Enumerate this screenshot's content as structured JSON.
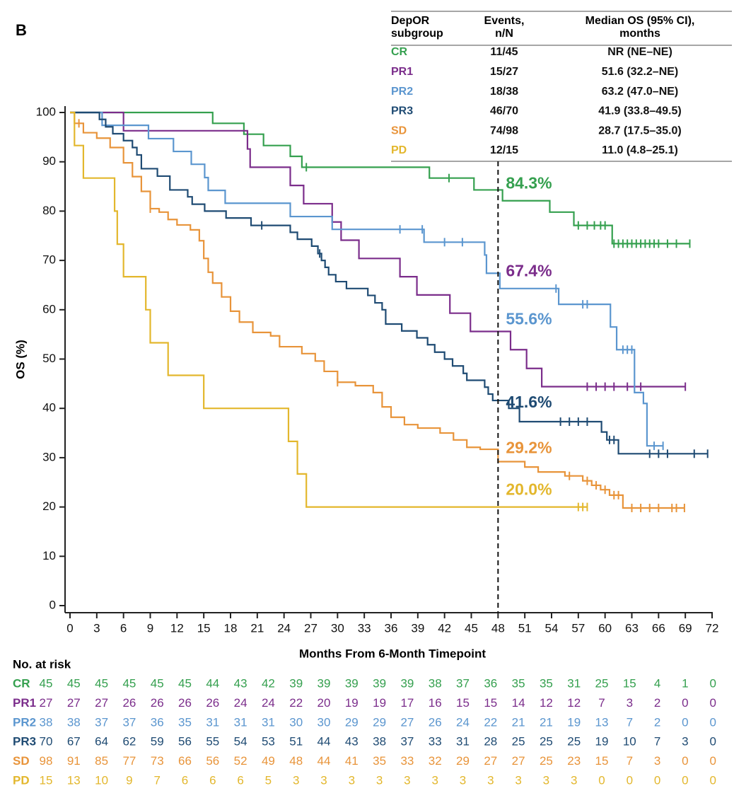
{
  "chart_data": {
    "type": "km",
    "panel_label": "B",
    "x_label": "Months From 6-Month Timepoint",
    "y_label": "OS (%)",
    "xlim": [
      0,
      72
    ],
    "ylim": [
      0,
      100
    ],
    "xticks": [
      0,
      3,
      6,
      9,
      12,
      15,
      18,
      21,
      24,
      27,
      30,
      33,
      36,
      39,
      42,
      45,
      48,
      51,
      54,
      57,
      60,
      63,
      66,
      69,
      72
    ],
    "yticks": [
      0,
      10,
      20,
      30,
      40,
      50,
      60,
      70,
      80,
      90,
      100
    ],
    "reference_x": 48,
    "series": [
      {
        "name": "CR",
        "color": "#35a04f",
        "x": [
          0,
          16,
          19.5,
          21.7,
          24.7,
          26,
          40.3,
          45.3,
          48.5,
          53.8,
          56.5,
          60.8,
          69.5
        ],
        "values": [
          100,
          97.8,
          95.6,
          93.3,
          91.1,
          88.9,
          86.7,
          84.3,
          82.1,
          79.8,
          77.1,
          73.4,
          73.4
        ],
        "censored": [
          26.5,
          42.5,
          57,
          58,
          58.8,
          59.5,
          60,
          61,
          61.5,
          62,
          62.5,
          63,
          63.5,
          64,
          64.5,
          65,
          65.5,
          66,
          67,
          68,
          69.5
        ]
      },
      {
        "name": "PR1",
        "color": "#7b2d8b",
        "x": [
          0,
          6,
          19.9,
          20.2,
          24.7,
          26.2,
          29.4,
          30.4,
          32.4,
          37,
          38.9,
          42.6,
          44.9,
          49.4,
          51.2,
          52.9,
          69
        ],
        "values": [
          100,
          96.3,
          92.6,
          88.9,
          85.2,
          81.5,
          77.8,
          74.1,
          70.4,
          66.7,
          63,
          59.3,
          55.6,
          51.9,
          48.1,
          44.4,
          44.4
        ],
        "censored": [
          58,
          59,
          60,
          61,
          62.5,
          64,
          69
        ]
      },
      {
        "name": "PR2",
        "color": "#5b96cf",
        "x": [
          0,
          3.6,
          8.8,
          11.6,
          13.6,
          15.1,
          15.5,
          17.4,
          24.7,
          29.4,
          39.7,
          46.5,
          46.7,
          48.2,
          54.8,
          60.6,
          61.3,
          63.3,
          64.3,
          64.7,
          66.5
        ],
        "values": [
          100,
          97.4,
          94.7,
          92.1,
          89.5,
          86.8,
          84.2,
          81.6,
          78.9,
          76.3,
          73.7,
          71.1,
          67.4,
          64.3,
          61.1,
          56.5,
          51.9,
          43.2,
          41,
          32.4,
          32.4
        ],
        "censored": [
          37,
          39.5,
          42,
          44,
          54.5,
          57.5,
          58,
          62,
          62.5,
          63,
          65.5,
          66.5
        ]
      },
      {
        "name": "PR3",
        "color": "#1f4b73",
        "x": [
          0,
          3.3,
          4,
          4.8,
          6,
          7,
          7.5,
          8,
          9.8,
          11.2,
          13.2,
          13.7,
          15.1,
          17.5,
          20.3,
          24.7,
          25.5,
          27.1,
          27.8,
          28.2,
          28.6,
          29,
          29.8,
          31,
          33.4,
          34.2,
          35,
          35.4,
          37.2,
          38.9,
          40.1,
          40.9,
          42,
          42.9,
          44.1,
          44.5,
          46.5,
          46.9,
          47.4,
          49.2,
          50.4,
          59.6,
          60.2,
          61.5,
          71.5
        ],
        "values": [
          100,
          98.6,
          97.1,
          95.7,
          94.3,
          92.9,
          91.4,
          88.6,
          87.1,
          84.3,
          82.9,
          81.4,
          80,
          78.6,
          77.1,
          75.7,
          74.3,
          72.9,
          71.4,
          70,
          68.6,
          67.1,
          65.7,
          64.3,
          62.9,
          61.4,
          60,
          57.1,
          55.7,
          54.3,
          52.9,
          51.4,
          50,
          48.6,
          47.1,
          45.7,
          44.3,
          42.9,
          41.6,
          40,
          37.3,
          35.2,
          33.6,
          30.8,
          30.8
        ],
        "censored": [
          21.5,
          28,
          55,
          56,
          57,
          58,
          60.5,
          61,
          65,
          66,
          67,
          70,
          71.5
        ]
      },
      {
        "name": "SD",
        "color": "#e8943a",
        "x": [
          0,
          0.5,
          1.5,
          3,
          4.5,
          6,
          7,
          8,
          9,
          10,
          11,
          12,
          13.5,
          14.5,
          15,
          15.5,
          16,
          17,
          18,
          19,
          20.5,
          22.5,
          23.5,
          26,
          27.5,
          28.5,
          30,
          32,
          34,
          35,
          36,
          37.5,
          39,
          41.5,
          43,
          44.5,
          46,
          48,
          51,
          52.5,
          55.5,
          57.5,
          58.5,
          59.5,
          60.5,
          62,
          68.9
        ],
        "values": [
          100,
          97.8,
          95.9,
          94.8,
          92.9,
          89.8,
          87,
          84,
          80.5,
          79.8,
          78.3,
          77.2,
          76.2,
          74,
          70.4,
          67.6,
          65.4,
          62.6,
          59.7,
          57.5,
          55.4,
          54.7,
          52.5,
          51.1,
          49.6,
          47.5,
          45.3,
          44.6,
          43.2,
          40.3,
          38.2,
          36.7,
          36,
          35,
          33.6,
          32.1,
          31.7,
          29.2,
          28.1,
          27.1,
          26.3,
          25.3,
          24.4,
          23.5,
          22.4,
          19.8,
          19.8
        ],
        "censored": [
          1,
          9,
          30,
          56,
          58,
          59,
          60,
          61,
          61.5,
          63,
          64,
          65,
          66,
          67.5,
          68,
          68.9
        ]
      },
      {
        "name": "PD",
        "color": "#e3b72d",
        "x": [
          0,
          0.5,
          1.5,
          5,
          5.3,
          6,
          8.5,
          9,
          11,
          15,
          24.5,
          25.5,
          26.5,
          58
        ],
        "values": [
          100,
          93.3,
          86.7,
          80,
          73.3,
          66.7,
          60,
          53.3,
          46.7,
          40,
          33.3,
          26.7,
          20,
          20
        ],
        "censored": [
          57,
          57.5,
          58
        ]
      }
    ],
    "annotations": [
      {
        "label": "84.3%",
        "value": 84.3
      },
      {
        "label": "67.4%",
        "value": 67.4
      },
      {
        "label": "55.6%",
        "value": 55.6
      },
      {
        "label": "41.6%",
        "value": 41.6
      },
      {
        "label": "29.2%",
        "value": 29.2
      },
      {
        "label": "20.0%",
        "value": 20.0
      }
    ],
    "table": {
      "header": [
        "DepOR subgroup",
        "Events, n/N",
        "Median OS (95% CI), months"
      ],
      "rows": [
        [
          "CR",
          "11/45",
          "NR (NE–NE)"
        ],
        [
          "PR1",
          "15/27",
          "51.6 (32.2–NE)"
        ],
        [
          "PR2",
          "18/38",
          "63.2 (47.0–NE)"
        ],
        [
          "PR3",
          "46/70",
          "41.9 (33.8–49.5)"
        ],
        [
          "SD",
          "74/98",
          "28.7 (17.5–35.0)"
        ],
        [
          "PD",
          "12/15",
          "11.0 (4.8–25.1)"
        ]
      ]
    },
    "risk_table": {
      "title": "No. at risk",
      "rows": [
        [
          45,
          45,
          45,
          45,
          45,
          45,
          44,
          43,
          42,
          39,
          39,
          39,
          39,
          39,
          38,
          37,
          36,
          35,
          35,
          31,
          25,
          15,
          4,
          1,
          0
        ],
        [
          27,
          27,
          27,
          26,
          26,
          26,
          26,
          24,
          24,
          22,
          20,
          19,
          19,
          17,
          16,
          15,
          15,
          14,
          12,
          12,
          7,
          3,
          2,
          0,
          0
        ],
        [
          38,
          38,
          37,
          37,
          36,
          35,
          31,
          31,
          31,
          30,
          30,
          29,
          29,
          27,
          26,
          24,
          22,
          21,
          21,
          19,
          13,
          7,
          2,
          0,
          0
        ],
        [
          70,
          67,
          64,
          62,
          59,
          56,
          55,
          54,
          53,
          51,
          44,
          43,
          38,
          37,
          33,
          31,
          28,
          25,
          25,
          25,
          19,
          10,
          7,
          3,
          0
        ],
        [
          98,
          91,
          85,
          77,
          73,
          66,
          56,
          52,
          49,
          48,
          44,
          41,
          35,
          33,
          32,
          29,
          27,
          27,
          25,
          23,
          15,
          7,
          3,
          0,
          0
        ],
        [
          15,
          13,
          10,
          9,
          7,
          6,
          6,
          6,
          5,
          3,
          3,
          3,
          3,
          3,
          3,
          3,
          3,
          3,
          3,
          3,
          0,
          0,
          0,
          0,
          0
        ]
      ]
    }
  }
}
